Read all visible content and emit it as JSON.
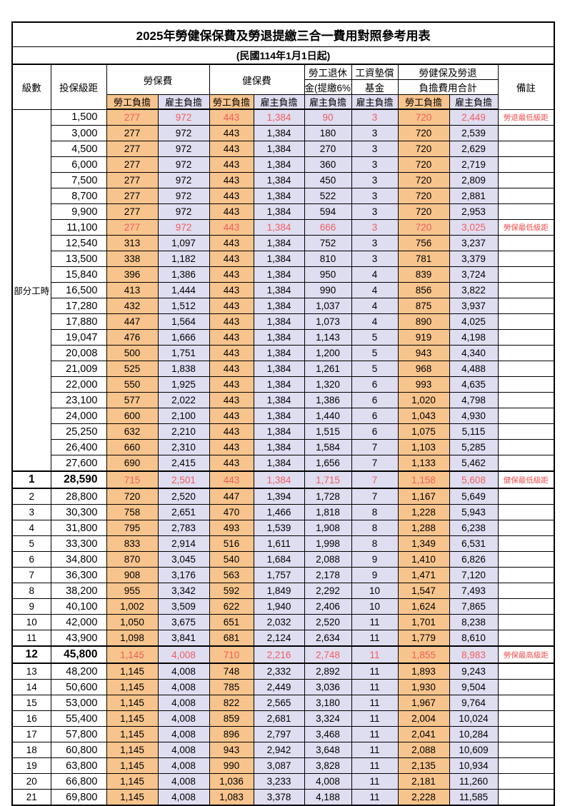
{
  "title": "2025年勞健保保費及勞退提繳三合一費用對照參考用表",
  "subtitle": "(民國114年1月1日起)",
  "header": {
    "level": "級數",
    "bracket": "投保級距",
    "labor_insurance": "勞保費",
    "health_insurance": "健保費",
    "pension_line1": "勞工退休",
    "pension_line2": "金(提繳6%)",
    "wage_fund_line1": "工資墊償",
    "wage_fund_line2": "基金",
    "total_line1": "勞健保及勞退",
    "total_line2": "負擔費用合計",
    "note": "備註",
    "employee": "勞工負擔",
    "employer": "雇主負擔"
  },
  "part_time_label": "部分工時",
  "colors": {
    "employee_fill": "#f8c48d",
    "employer_fill": "#dfddf0",
    "highlight_red": "#ef5e5e",
    "note_red": "#ee4f4f",
    "border": "#000000"
  },
  "rows": [
    {
      "level": "",
      "bracket": "1,500",
      "v": [
        "277",
        "972",
        "443",
        "1,384",
        "90",
        "3",
        "720",
        "2,449"
      ],
      "note": "勞退最低級距",
      "red": true,
      "special": false
    },
    {
      "level": "",
      "bracket": "3,000",
      "v": [
        "277",
        "972",
        "443",
        "1,384",
        "180",
        "3",
        "720",
        "2,539"
      ],
      "note": "",
      "red": false,
      "special": false
    },
    {
      "level": "",
      "bracket": "4,500",
      "v": [
        "277",
        "972",
        "443",
        "1,384",
        "270",
        "3",
        "720",
        "2,629"
      ],
      "note": "",
      "red": false,
      "special": false
    },
    {
      "level": "",
      "bracket": "6,000",
      "v": [
        "277",
        "972",
        "443",
        "1,384",
        "360",
        "3",
        "720",
        "2,719"
      ],
      "note": "",
      "red": false,
      "special": false
    },
    {
      "level": "",
      "bracket": "7,500",
      "v": [
        "277",
        "972",
        "443",
        "1,384",
        "450",
        "3",
        "720",
        "2,809"
      ],
      "note": "",
      "red": false,
      "special": false
    },
    {
      "level": "",
      "bracket": "8,700",
      "v": [
        "277",
        "972",
        "443",
        "1,384",
        "522",
        "3",
        "720",
        "2,881"
      ],
      "note": "",
      "red": false,
      "special": false
    },
    {
      "level": "",
      "bracket": "9,900",
      "v": [
        "277",
        "972",
        "443",
        "1,384",
        "594",
        "3",
        "720",
        "2,953"
      ],
      "note": "",
      "red": false,
      "special": false
    },
    {
      "level": "",
      "bracket": "11,100",
      "v": [
        "277",
        "972",
        "443",
        "1,384",
        "666",
        "3",
        "720",
        "3,025"
      ],
      "note": "勞保最低級距",
      "red": true,
      "special": false
    },
    {
      "level": "",
      "bracket": "12,540",
      "v": [
        "313",
        "1,097",
        "443",
        "1,384",
        "752",
        "3",
        "756",
        "3,237"
      ],
      "note": "",
      "red": false,
      "special": false
    },
    {
      "level": "",
      "bracket": "13,500",
      "v": [
        "338",
        "1,182",
        "443",
        "1,384",
        "810",
        "3",
        "781",
        "3,379"
      ],
      "note": "",
      "red": false,
      "special": false
    },
    {
      "level": "",
      "bracket": "15,840",
      "v": [
        "396",
        "1,386",
        "443",
        "1,384",
        "950",
        "4",
        "839",
        "3,724"
      ],
      "note": "",
      "red": false,
      "special": false
    },
    {
      "level": "",
      "bracket": "16,500",
      "v": [
        "413",
        "1,444",
        "443",
        "1,384",
        "990",
        "4",
        "856",
        "3,822"
      ],
      "note": "",
      "red": false,
      "special": false
    },
    {
      "level": "",
      "bracket": "17,280",
      "v": [
        "432",
        "1,512",
        "443",
        "1,384",
        "1,037",
        "4",
        "875",
        "3,937"
      ],
      "note": "",
      "red": false,
      "special": false
    },
    {
      "level": "",
      "bracket": "17,880",
      "v": [
        "447",
        "1,564",
        "443",
        "1,384",
        "1,073",
        "4",
        "890",
        "4,025"
      ],
      "note": "",
      "red": false,
      "special": false
    },
    {
      "level": "",
      "bracket": "19,047",
      "v": [
        "476",
        "1,666",
        "443",
        "1,384",
        "1,143",
        "5",
        "919",
        "4,198"
      ],
      "note": "",
      "red": false,
      "special": false
    },
    {
      "level": "",
      "bracket": "20,008",
      "v": [
        "500",
        "1,751",
        "443",
        "1,384",
        "1,200",
        "5",
        "943",
        "4,340"
      ],
      "note": "",
      "red": false,
      "special": false
    },
    {
      "level": "",
      "bracket": "21,009",
      "v": [
        "525",
        "1,838",
        "443",
        "1,384",
        "1,261",
        "5",
        "968",
        "4,488"
      ],
      "note": "",
      "red": false,
      "special": false
    },
    {
      "level": "",
      "bracket": "22,000",
      "v": [
        "550",
        "1,925",
        "443",
        "1,384",
        "1,320",
        "6",
        "993",
        "4,635"
      ],
      "note": "",
      "red": false,
      "special": false
    },
    {
      "level": "",
      "bracket": "23,100",
      "v": [
        "577",
        "2,022",
        "443",
        "1,384",
        "1,386",
        "6",
        "1,020",
        "4,798"
      ],
      "note": "",
      "red": false,
      "special": false
    },
    {
      "level": "",
      "bracket": "24,000",
      "v": [
        "600",
        "2,100",
        "443",
        "1,384",
        "1,440",
        "6",
        "1,043",
        "4,930"
      ],
      "note": "",
      "red": false,
      "special": false
    },
    {
      "level": "",
      "bracket": "25,250",
      "v": [
        "632",
        "2,210",
        "443",
        "1,384",
        "1,515",
        "6",
        "1,075",
        "5,115"
      ],
      "note": "",
      "red": false,
      "special": false
    },
    {
      "level": "",
      "bracket": "26,400",
      "v": [
        "660",
        "2,310",
        "443",
        "1,384",
        "1,584",
        "7",
        "1,103",
        "5,285"
      ],
      "note": "",
      "red": false,
      "special": false
    },
    {
      "level": "",
      "bracket": "27,600",
      "v": [
        "690",
        "2,415",
        "443",
        "1,384",
        "1,656",
        "7",
        "1,133",
        "5,462"
      ],
      "note": "",
      "red": false,
      "special": false
    },
    {
      "level": "1",
      "bracket": "28,590",
      "v": [
        "715",
        "2,501",
        "443",
        "1,384",
        "1,715",
        "7",
        "1,158",
        "5,608"
      ],
      "note": "健保最低級距",
      "red": true,
      "special": true
    },
    {
      "level": "2",
      "bracket": "28,800",
      "v": [
        "720",
        "2,520",
        "447",
        "1,394",
        "1,728",
        "7",
        "1,167",
        "5,649"
      ],
      "note": "",
      "red": false,
      "special": false
    },
    {
      "level": "3",
      "bracket": "30,300",
      "v": [
        "758",
        "2,651",
        "470",
        "1,466",
        "1,818",
        "8",
        "1,228",
        "5,943"
      ],
      "note": "",
      "red": false,
      "special": false
    },
    {
      "level": "4",
      "bracket": "31,800",
      "v": [
        "795",
        "2,783",
        "493",
        "1,539",
        "1,908",
        "8",
        "1,288",
        "6,238"
      ],
      "note": "",
      "red": false,
      "special": false
    },
    {
      "level": "5",
      "bracket": "33,300",
      "v": [
        "833",
        "2,914",
        "516",
        "1,611",
        "1,998",
        "8",
        "1,349",
        "6,531"
      ],
      "note": "",
      "red": false,
      "special": false
    },
    {
      "level": "6",
      "bracket": "34,800",
      "v": [
        "870",
        "3,045",
        "540",
        "1,684",
        "2,088",
        "9",
        "1,410",
        "6,826"
      ],
      "note": "",
      "red": false,
      "special": false
    },
    {
      "level": "7",
      "bracket": "36,300",
      "v": [
        "908",
        "3,176",
        "563",
        "1,757",
        "2,178",
        "9",
        "1,471",
        "7,120"
      ],
      "note": "",
      "red": false,
      "special": false
    },
    {
      "level": "8",
      "bracket": "38,200",
      "v": [
        "955",
        "3,342",
        "592",
        "1,849",
        "2,292",
        "10",
        "1,547",
        "7,493"
      ],
      "note": "",
      "red": false,
      "special": false
    },
    {
      "level": "9",
      "bracket": "40,100",
      "v": [
        "1,002",
        "3,509",
        "622",
        "1,940",
        "2,406",
        "10",
        "1,624",
        "7,865"
      ],
      "note": "",
      "red": false,
      "special": false
    },
    {
      "level": "10",
      "bracket": "42,000",
      "v": [
        "1,050",
        "3,675",
        "651",
        "2,032",
        "2,520",
        "11",
        "1,701",
        "8,238"
      ],
      "note": "",
      "red": false,
      "special": false
    },
    {
      "level": "11",
      "bracket": "43,900",
      "v": [
        "1,098",
        "3,841",
        "681",
        "2,124",
        "2,634",
        "11",
        "1,779",
        "8,610"
      ],
      "note": "",
      "red": false,
      "special": false
    },
    {
      "level": "12",
      "bracket": "45,800",
      "v": [
        "1,145",
        "4,008",
        "710",
        "2,216",
        "2,748",
        "11",
        "1,855",
        "8,983"
      ],
      "note": "勞保最高級距",
      "red": true,
      "special": true
    },
    {
      "level": "13",
      "bracket": "48,200",
      "v": [
        "1,145",
        "4,008",
        "748",
        "2,332",
        "2,892",
        "11",
        "1,893",
        "9,243"
      ],
      "note": "",
      "red": false,
      "special": false
    },
    {
      "level": "14",
      "bracket": "50,600",
      "v": [
        "1,145",
        "4,008",
        "785",
        "2,449",
        "3,036",
        "11",
        "1,930",
        "9,504"
      ],
      "note": "",
      "red": false,
      "special": false
    },
    {
      "level": "15",
      "bracket": "53,000",
      "v": [
        "1,145",
        "4,008",
        "822",
        "2,565",
        "3,180",
        "11",
        "1,967",
        "9,764"
      ],
      "note": "",
      "red": false,
      "special": false
    },
    {
      "level": "16",
      "bracket": "55,400",
      "v": [
        "1,145",
        "4,008",
        "859",
        "2,681",
        "3,324",
        "11",
        "2,004",
        "10,024"
      ],
      "note": "",
      "red": false,
      "special": false
    },
    {
      "level": "17",
      "bracket": "57,800",
      "v": [
        "1,145",
        "4,008",
        "896",
        "2,797",
        "3,468",
        "11",
        "2,041",
        "10,284"
      ],
      "note": "",
      "red": false,
      "special": false
    },
    {
      "level": "18",
      "bracket": "60,800",
      "v": [
        "1,145",
        "4,008",
        "943",
        "2,942",
        "3,648",
        "11",
        "2,088",
        "10,609"
      ],
      "note": "",
      "red": false,
      "special": false
    },
    {
      "level": "19",
      "bracket": "63,800",
      "v": [
        "1,145",
        "4,008",
        "990",
        "3,087",
        "3,828",
        "11",
        "2,135",
        "10,934"
      ],
      "note": "",
      "red": false,
      "special": false
    },
    {
      "level": "20",
      "bracket": "66,800",
      "v": [
        "1,145",
        "4,008",
        "1,036",
        "3,233",
        "4,008",
        "11",
        "2,181",
        "11,260"
      ],
      "note": "",
      "red": false,
      "special": false
    },
    {
      "level": "21",
      "bracket": "69,800",
      "v": [
        "1,145",
        "4,008",
        "1,083",
        "3,378",
        "4,188",
        "11",
        "2,228",
        "11,585"
      ],
      "note": "",
      "red": false,
      "special": false
    }
  ]
}
